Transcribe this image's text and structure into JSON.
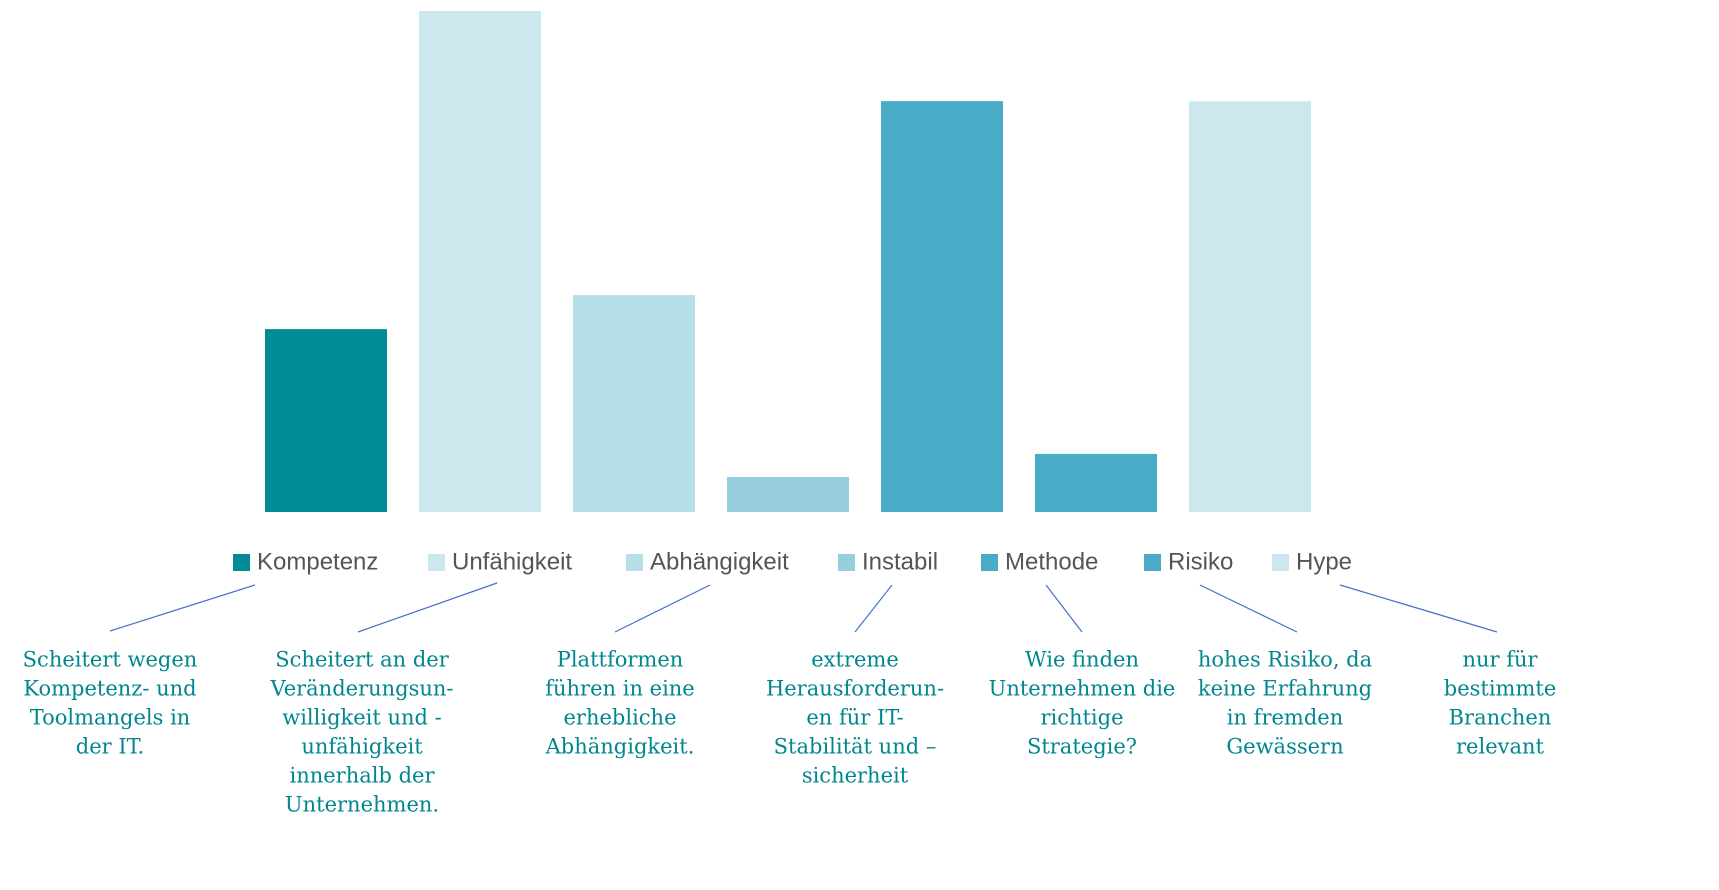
{
  "chart_data": {
    "type": "bar",
    "categories": [
      "Kompetenz",
      "Unfähigkeit",
      "Abhängigkeit",
      "Instabil",
      "Methode",
      "Risiko",
      "Hype"
    ],
    "values": [
      36.5,
      100,
      43.3,
      7,
      82,
      11.6,
      82
    ],
    "colors": [
      "#008b95",
      "#cce8ee",
      "#b7dfe8",
      "#96cedc",
      "#4aabc6",
      "#4aabc6",
      "#cce8ee"
    ],
    "ylim": [
      0,
      100
    ],
    "legend": "bottom",
    "annotations": [
      [
        "Scheitert wegen",
        "Kompetenz- und",
        "Toolmangels in",
        "der IT."
      ],
      [
        "Scheitert an der",
        "Veränderungsun-",
        "willigkeit und -",
        "unfähigkeit",
        "innerhalb der",
        "Unternehmen."
      ],
      [
        "Plattformen",
        "führen in eine",
        "erhebliche",
        "Abhängigkeit."
      ],
      [
        "extreme",
        "Herausforderun-",
        "en für IT-",
        "Stabilität und –",
        "sicherheit"
      ],
      [
        "Wie finden",
        "Unternehmen die",
        "richtige",
        "Strategie?"
      ],
      [
        "hohes Risiko, da",
        "keine Erfahrung",
        "in fremden",
        "Gewässern"
      ],
      [
        "nur für",
        "bestimmte",
        "Branchen",
        "relevant"
      ]
    ]
  }
}
